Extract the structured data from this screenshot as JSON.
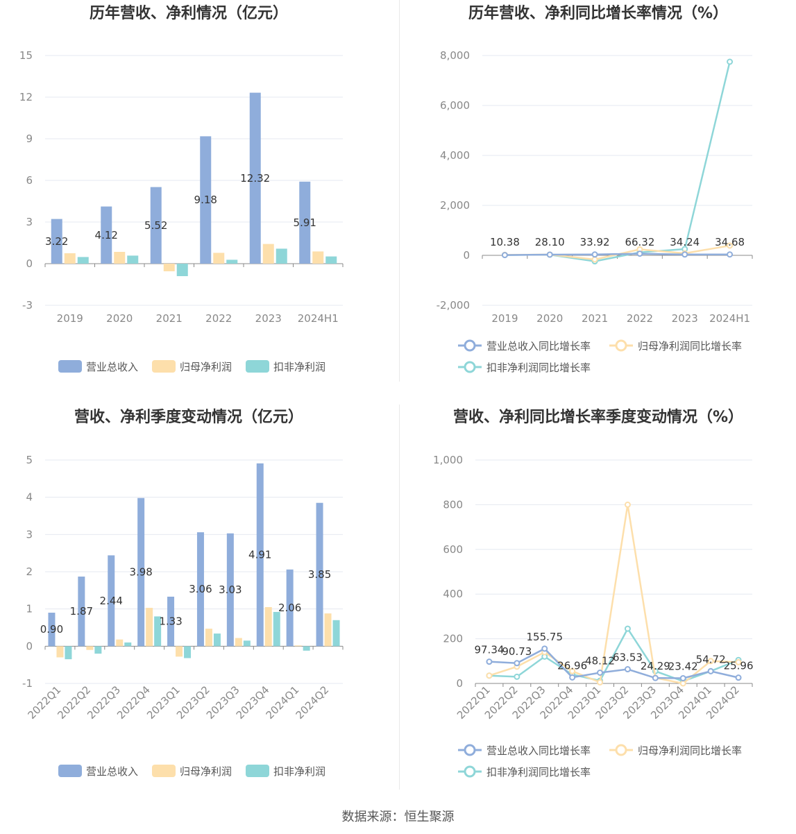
{
  "source": "数据来源：恒生聚源",
  "colors": {
    "revenue": "#8faddb",
    "netProfit": "#fddfab",
    "deductNet": "#8ed6d8",
    "grid": "#e4e8f0"
  },
  "chart_data": [
    {
      "type": "bar",
      "title": "历年营收、净利情况（亿元）",
      "categories": [
        "2019",
        "2020",
        "2021",
        "2022",
        "2023",
        "2024H1"
      ],
      "ylim": [
        -3,
        15
      ],
      "yticks": [
        -3,
        0,
        3,
        6,
        9,
        12,
        15
      ],
      "grid": true,
      "legend_position": "bottom",
      "series": [
        {
          "name": "营业总收入",
          "values": [
            3.22,
            4.12,
            5.52,
            9.18,
            12.32,
            5.91
          ],
          "labels": [
            "3.22",
            "4.12",
            "5.52",
            "9.18",
            "12.32",
            "5.91"
          ]
        },
        {
          "name": "归母净利润",
          "values": [
            0.75,
            0.85,
            -0.55,
            0.78,
            1.42,
            0.88
          ]
        },
        {
          "name": "扣非净利润",
          "values": [
            0.48,
            0.58,
            -0.9,
            0.28,
            1.08,
            0.52
          ]
        }
      ]
    },
    {
      "type": "line",
      "title": "历年营收、净利同比增长率情况（%）",
      "categories": [
        "2019",
        "2020",
        "2021",
        "2022",
        "2023",
        "2024H1"
      ],
      "ylim": [
        -2000,
        8000
      ],
      "yticks": [
        -2000,
        0,
        2000,
        4000,
        6000,
        8000
      ],
      "ytick_labels": [
        "-2,000",
        "0",
        "2,000",
        "4,000",
        "6,000",
        "8,000"
      ],
      "grid": true,
      "legend_position": "bottom",
      "series": [
        {
          "name": "营业总收入同比增长率",
          "values": [
            10.38,
            28.1,
            33.92,
            66.32,
            34.24,
            34.68
          ],
          "labels": [
            "10.38",
            "28.10",
            "33.92",
            "66.32",
            "34.24",
            "34.68"
          ]
        },
        {
          "name": "归母净利润同比增长率",
          "values": [
            20,
            30,
            -165,
            240,
            80,
            390
          ]
        },
        {
          "name": "扣非净利润同比增长率",
          "values": [
            15,
            25,
            -240,
            120,
            250,
            7750
          ]
        }
      ]
    },
    {
      "type": "bar",
      "title": "营收、净利季度变动情况（亿元）",
      "categories": [
        "2022Q1",
        "2022Q2",
        "2022Q3",
        "2022Q4",
        "2023Q1",
        "2023Q2",
        "2023Q3",
        "2023Q4",
        "2024Q1",
        "2024Q2"
      ],
      "ylim": [
        -1,
        5
      ],
      "yticks": [
        -1,
        0,
        1,
        2,
        3,
        4,
        5
      ],
      "grid": true,
      "legend_position": "bottom",
      "series": [
        {
          "name": "营业总收入",
          "values": [
            0.9,
            1.87,
            2.44,
            3.98,
            1.33,
            3.06,
            3.03,
            4.91,
            2.06,
            3.85
          ],
          "labels": [
            "0.90",
            "1.87",
            "2.44",
            "3.98",
            "1.33",
            "3.06",
            "3.03",
            "4.91",
            "2.06",
            "3.85"
          ]
        },
        {
          "name": "归母净利润",
          "values": [
            -0.3,
            -0.1,
            0.18,
            1.03,
            -0.28,
            0.47,
            0.22,
            1.05,
            0.02,
            0.88
          ]
        },
        {
          "name": "扣非净利润",
          "values": [
            -0.35,
            -0.2,
            0.1,
            0.8,
            -0.32,
            0.34,
            0.15,
            0.92,
            -0.12,
            0.7
          ]
        }
      ]
    },
    {
      "type": "line",
      "title": "营收、净利同比增长率季度变动情况（%）",
      "categories": [
        "2022Q1",
        "2022Q2",
        "2022Q3",
        "2022Q4",
        "2023Q1",
        "2023Q2",
        "2023Q3",
        "2023Q4",
        "2024Q1",
        "2024Q2"
      ],
      "ylim": [
        0,
        1000
      ],
      "yticks": [
        0,
        200,
        400,
        600,
        800,
        1000
      ],
      "ytick_labels": [
        "0",
        "200",
        "400",
        "600",
        "800",
        "1,000"
      ],
      "grid": true,
      "legend_position": "bottom",
      "series": [
        {
          "name": "营业总收入同比增长率",
          "values": [
            97.34,
            90.73,
            155.75,
            26.96,
            48.12,
            63.53,
            24.29,
            23.42,
            54.72,
            25.96
          ],
          "labels": [
            "97.34",
            "90.73",
            "155.75",
            "26.96",
            "48.12",
            "63.53",
            "24.29",
            "23.42",
            "54.72",
            "25.96"
          ]
        },
        {
          "name": "归母净利润同比增长率",
          "values": [
            35,
            75,
            140,
            55,
            5,
            800,
            25,
            0,
            100,
            95
          ]
        },
        {
          "name": "扣非净利润同比增长率",
          "values": [
            35,
            30,
            120,
            40,
            12,
            245,
            55,
            10,
            55,
            105
          ]
        }
      ]
    }
  ]
}
